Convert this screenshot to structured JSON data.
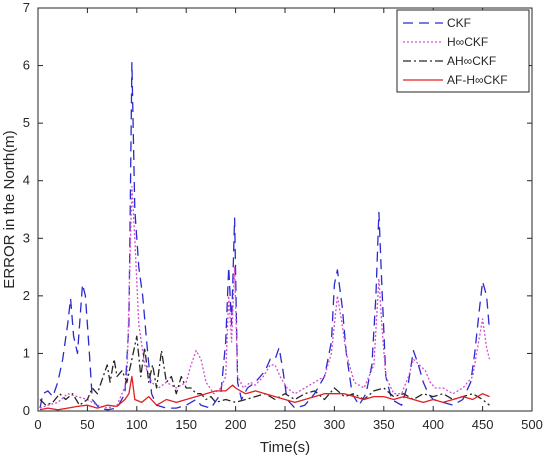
{
  "chart_data": {
    "type": "line",
    "title": "",
    "xlabel": "Time(s)",
    "ylabel": "ERROR in the North(m)",
    "xlim": [
      0,
      500
    ],
    "ylim": [
      0,
      7
    ],
    "xticks": [
      0,
      50,
      100,
      150,
      200,
      250,
      300,
      350,
      400,
      450,
      500
    ],
    "yticks": [
      0,
      1,
      2,
      3,
      4,
      5,
      6,
      7
    ],
    "grid": false,
    "legend_position": "top-right",
    "series": [
      {
        "name": "CKF",
        "color": "#2a2acf",
        "dash": "dashed",
        "points": [
          [
            2,
            0.05
          ],
          [
            5,
            0.3
          ],
          [
            10,
            0.35
          ],
          [
            15,
            0.25
          ],
          [
            20,
            0.5
          ],
          [
            25,
            0.9
          ],
          [
            30,
            1.5
          ],
          [
            33,
            1.95
          ],
          [
            36,
            1.3
          ],
          [
            40,
            1.0
          ],
          [
            45,
            2.2
          ],
          [
            48,
            2.0
          ],
          [
            52,
            1.0
          ],
          [
            55,
            0.2
          ],
          [
            62,
            0.05
          ],
          [
            70,
            0.02
          ],
          [
            80,
            0.05
          ],
          [
            88,
            0.3
          ],
          [
            92,
            1.5
          ],
          [
            95,
            6.05
          ],
          [
            98,
            3.5
          ],
          [
            102,
            2.5
          ],
          [
            106,
            2.0
          ],
          [
            110,
            1.2
          ],
          [
            115,
            0.3
          ],
          [
            120,
            0.1
          ],
          [
            130,
            0.05
          ],
          [
            140,
            0.05
          ],
          [
            150,
            0.1
          ],
          [
            160,
            0.2
          ],
          [
            165,
            0.1
          ],
          [
            175,
            0.05
          ],
          [
            185,
            0.3
          ],
          [
            190,
            1.2
          ],
          [
            193,
            2.5
          ],
          [
            196,
            1.5
          ],
          [
            199,
            3.35
          ],
          [
            202,
            0.5
          ],
          [
            206,
            0.2
          ],
          [
            212,
            0.4
          ],
          [
            220,
            0.5
          ],
          [
            230,
            0.7
          ],
          [
            235,
            0.9
          ],
          [
            240,
            0.9
          ],
          [
            244,
            1.1
          ],
          [
            248,
            0.7
          ],
          [
            252,
            0.2
          ],
          [
            260,
            0.05
          ],
          [
            270,
            0.1
          ],
          [
            280,
            0.3
          ],
          [
            290,
            0.6
          ],
          [
            297,
            1.2
          ],
          [
            300,
            2.2
          ],
          [
            303,
            2.45
          ],
          [
            308,
            1.8
          ],
          [
            312,
            1.0
          ],
          [
            318,
            0.3
          ],
          [
            325,
            0.1
          ],
          [
            332,
            0.3
          ],
          [
            338,
            0.8
          ],
          [
            342,
            2.0
          ],
          [
            345,
            3.45
          ],
          [
            348,
            2.2
          ],
          [
            352,
            0.6
          ],
          [
            358,
            0.2
          ],
          [
            368,
            0.1
          ],
          [
            375,
            0.5
          ],
          [
            380,
            1.05
          ],
          [
            385,
            0.8
          ],
          [
            390,
            0.5
          ],
          [
            395,
            0.3
          ],
          [
            400,
            0.2
          ],
          [
            410,
            0.15
          ],
          [
            420,
            0.1
          ],
          [
            430,
            0.2
          ],
          [
            438,
            0.5
          ],
          [
            442,
            1.0
          ],
          [
            447,
            1.8
          ],
          [
            450,
            2.25
          ],
          [
            454,
            2.0
          ],
          [
            457,
            1.4
          ]
        ]
      },
      {
        "name": "H∞CKF",
        "color": "#d24fd2",
        "dash": "dotted",
        "points": [
          [
            2,
            0.05
          ],
          [
            10,
            0.1
          ],
          [
            20,
            0.15
          ],
          [
            30,
            0.3
          ],
          [
            40,
            0.25
          ],
          [
            50,
            0.2
          ],
          [
            60,
            0.1
          ],
          [
            70,
            0.05
          ],
          [
            80,
            0.1
          ],
          [
            90,
            0.5
          ],
          [
            95,
            3.9
          ],
          [
            98,
            3.0
          ],
          [
            102,
            1.5
          ],
          [
            108,
            0.8
          ],
          [
            115,
            0.5
          ],
          [
            122,
            0.4
          ],
          [
            130,
            0.5
          ],
          [
            140,
            0.4
          ],
          [
            150,
            0.5
          ],
          [
            155,
            0.8
          ],
          [
            160,
            1.05
          ],
          [
            165,
            0.9
          ],
          [
            170,
            0.5
          ],
          [
            178,
            0.3
          ],
          [
            185,
            0.4
          ],
          [
            190,
            0.6
          ],
          [
            193,
            2.0
          ],
          [
            196,
            1.2
          ],
          [
            199,
            2.5
          ],
          [
            202,
            0.6
          ],
          [
            208,
            0.4
          ],
          [
            215,
            0.5
          ],
          [
            220,
            0.45
          ],
          [
            228,
            0.6
          ],
          [
            235,
            0.8
          ],
          [
            240,
            0.8
          ],
          [
            245,
            0.6
          ],
          [
            252,
            0.4
          ],
          [
            260,
            0.3
          ],
          [
            270,
            0.4
          ],
          [
            280,
            0.5
          ],
          [
            290,
            0.6
          ],
          [
            297,
            1.0
          ],
          [
            300,
            1.5
          ],
          [
            303,
            2.0
          ],
          [
            307,
            1.6
          ],
          [
            312,
            1.0
          ],
          [
            320,
            0.5
          ],
          [
            330,
            0.4
          ],
          [
            340,
            0.8
          ],
          [
            345,
            2.3
          ],
          [
            348,
            1.5
          ],
          [
            352,
            0.6
          ],
          [
            360,
            0.3
          ],
          [
            368,
            0.3
          ],
          [
            375,
            0.6
          ],
          [
            380,
            0.9
          ],
          [
            386,
            0.8
          ],
          [
            392,
            0.7
          ],
          [
            397,
            0.5
          ],
          [
            402,
            0.4
          ],
          [
            410,
            0.4
          ],
          [
            420,
            0.3
          ],
          [
            430,
            0.4
          ],
          [
            440,
            0.6
          ],
          [
            446,
            1.2
          ],
          [
            450,
            1.6
          ],
          [
            454,
            1.1
          ],
          [
            457,
            0.9
          ]
        ]
      },
      {
        "name": "AH∞CKF",
        "color": "#262626",
        "dash": "dashdot",
        "points": [
          [
            2,
            0.2
          ],
          [
            8,
            0.1
          ],
          [
            15,
            0.15
          ],
          [
            22,
            0.3
          ],
          [
            28,
            0.2
          ],
          [
            35,
            0.3
          ],
          [
            42,
            0.1
          ],
          [
            50,
            0.2
          ],
          [
            55,
            0.4
          ],
          [
            60,
            0.3
          ],
          [
            66,
            0.6
          ],
          [
            70,
            0.8
          ],
          [
            73,
            0.5
          ],
          [
            77,
            0.9
          ],
          [
            80,
            0.6
          ],
          [
            85,
            0.7
          ],
          [
            90,
            0.5
          ],
          [
            95,
            0.9
          ],
          [
            100,
            1.3
          ],
          [
            104,
            0.6
          ],
          [
            108,
            1.1
          ],
          [
            112,
            0.5
          ],
          [
            116,
            0.8
          ],
          [
            120,
            0.4
          ],
          [
            125,
            1.05
          ],
          [
            130,
            0.5
          ],
          [
            135,
            0.6
          ],
          [
            140,
            0.3
          ],
          [
            145,
            0.6
          ],
          [
            150,
            0.4
          ],
          [
            155,
            0.4
          ],
          [
            160,
            0.3
          ],
          [
            165,
            0.3
          ],
          [
            170,
            0.2
          ],
          [
            175,
            0.25
          ],
          [
            180,
            0.15
          ],
          [
            190,
            0.2
          ],
          [
            200,
            0.15
          ],
          [
            210,
            0.2
          ],
          [
            220,
            0.25
          ],
          [
            230,
            0.3
          ],
          [
            240,
            0.2
          ],
          [
            250,
            0.3
          ],
          [
            260,
            0.2
          ],
          [
            270,
            0.3
          ],
          [
            280,
            0.35
          ],
          [
            290,
            0.2
          ],
          [
            300,
            0.4
          ],
          [
            310,
            0.25
          ],
          [
            320,
            0.3
          ],
          [
            330,
            0.2
          ],
          [
            340,
            0.35
          ],
          [
            350,
            0.4
          ],
          [
            360,
            0.25
          ],
          [
            370,
            0.3
          ],
          [
            380,
            0.2
          ],
          [
            390,
            0.3
          ],
          [
            400,
            0.25
          ],
          [
            410,
            0.3
          ],
          [
            420,
            0.2
          ],
          [
            430,
            0.25
          ],
          [
            440,
            0.3
          ],
          [
            450,
            0.2
          ],
          [
            457,
            0.1
          ]
        ]
      },
      {
        "name": "AF-H∞CKF",
        "color": "#e02020",
        "dash": "solid",
        "points": [
          [
            2,
            0.02
          ],
          [
            10,
            0.05
          ],
          [
            20,
            0.02
          ],
          [
            30,
            0.05
          ],
          [
            40,
            0.08
          ],
          [
            50,
            0.1
          ],
          [
            60,
            0.05
          ],
          [
            70,
            0.1
          ],
          [
            80,
            0.08
          ],
          [
            88,
            0.2
          ],
          [
            92,
            0.3
          ],
          [
            95,
            0.6
          ],
          [
            98,
            0.2
          ],
          [
            105,
            0.15
          ],
          [
            112,
            0.25
          ],
          [
            120,
            0.1
          ],
          [
            130,
            0.2
          ],
          [
            140,
            0.15
          ],
          [
            150,
            0.2
          ],
          [
            160,
            0.25
          ],
          [
            170,
            0.3
          ],
          [
            180,
            0.35
          ],
          [
            190,
            0.35
          ],
          [
            197,
            0.45
          ],
          [
            200,
            0.4
          ],
          [
            205,
            0.35
          ],
          [
            210,
            0.3
          ],
          [
            220,
            0.35
          ],
          [
            230,
            0.3
          ],
          [
            240,
            0.25
          ],
          [
            250,
            0.2
          ],
          [
            260,
            0.15
          ],
          [
            270,
            0.2
          ],
          [
            280,
            0.25
          ],
          [
            290,
            0.3
          ],
          [
            300,
            0.3
          ],
          [
            310,
            0.3
          ],
          [
            320,
            0.25
          ],
          [
            330,
            0.2
          ],
          [
            340,
            0.25
          ],
          [
            350,
            0.25
          ],
          [
            360,
            0.2
          ],
          [
            370,
            0.25
          ],
          [
            380,
            0.2
          ],
          [
            390,
            0.15
          ],
          [
            400,
            0.2
          ],
          [
            410,
            0.15
          ],
          [
            420,
            0.2
          ],
          [
            430,
            0.25
          ],
          [
            440,
            0.2
          ],
          [
            450,
            0.3
          ],
          [
            457,
            0.25
          ]
        ]
      }
    ]
  }
}
